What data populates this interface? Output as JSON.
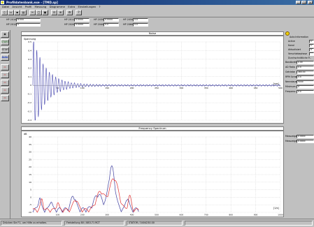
{
  "window": {
    "title": "Profildatenbank.exe - [TMD.sp]",
    "min": "_",
    "max": "□",
    "close": "×"
  },
  "menu": [
    "Datei",
    "Ansicht",
    "Profil",
    "Messung",
    "Diagramme",
    "Extra",
    "Einstellungen",
    "?"
  ],
  "toolbar": {
    "buttons": [
      "new",
      "open",
      "save",
      "print",
      "cut",
      "copy",
      "paste",
      "fit",
      "zoom",
      "settings",
      "help"
    ]
  },
  "params": {
    "row1": [
      {
        "label": "HP 2010",
        "value": "8.000"
      },
      {
        "label": "HP 2011",
        "value": "0.0000"
      },
      {
        "label": "HP 2030",
        "value": "0.0000"
      },
      {
        "label": "HP 2050",
        "value": "0.0"
      }
    ],
    "row2": [
      {
        "label": "HP 2012",
        "value": "0"
      },
      {
        "label": "HP 2020",
        "value": "0.0000"
      },
      {
        "label": "HP 2040",
        "value": "0.0"
      },
      {
        "label": "HP 2060",
        "value": "0.0"
      }
    ]
  },
  "left_tools": [
    "▣",
    "START",
    "STOP",
    "Auto",
    "▭",
    "▭",
    "▭",
    "▭",
    "▭"
  ],
  "noise_panel": {
    "title": "Noise",
    "ylabel": "Spannung",
    "xunit": "[ms]",
    "yticks": [
      "0.5",
      "0.4",
      "0.3",
      "0.2",
      "0.1",
      "0",
      "-0.1",
      "-0.2",
      "-0.3",
      "-0.4"
    ],
    "xticks": [
      "50",
      "100",
      "150",
      "200",
      "250",
      "300",
      "350",
      "400",
      "450",
      "500"
    ]
  },
  "spectrum_panel": {
    "title": "Frequency Spectrum",
    "ylabel": "dB",
    "xunit": "[1/s]",
    "yticks": [
      "40",
      "35",
      "30",
      "25",
      "20",
      "15",
      "10",
      "5",
      "0",
      "-5",
      "-10"
    ],
    "xticks": [
      "100",
      "200",
      "300",
      "400",
      "500",
      "600",
      "700",
      "800",
      "900",
      "1000"
    ]
  },
  "right_panel": {
    "heading": "Auto Information",
    "rows": [
      {
        "label": "Active",
        "value": "1"
      },
      {
        "label": "Kanal",
        "value": "1"
      },
      {
        "label": "Aktualisiert",
        "value": "0"
      },
      {
        "label": "Verschiebephase",
        "value": ""
      }
    ],
    "section2": "Durchschnittliche P...",
    "rows2": [
      {
        "label": "Bandbreite",
        "value": "0.00"
      },
      {
        "label": "AD Ratio",
        "value": "0.0"
      },
      {
        "label": "Getriebe",
        "value": "480.00"
      },
      {
        "label": "RPM Schwing",
        "value": "0.0"
      },
      {
        "label": "Nenndauer",
        "value": "5000"
      },
      {
        "label": "Minimum",
        "value": "0"
      },
      {
        "label": "Frequenz",
        "value": "0.0"
      }
    ],
    "rows3": [
      {
        "label": "Messzeiger 1",
        "value": "0.0000"
      },
      {
        "label": "Messzeiger 2",
        "value": "0.0000"
      }
    ]
  },
  "status": {
    "help": "Drücken Sie F1, um Hilfe zu erhalten.",
    "pos": "Freistellung 80 / 883.71 RCT",
    "coords": "STATOR / 3404230.00"
  },
  "colors": {
    "blue": "#4040a0",
    "red": "#e03030",
    "title": "#0a246a"
  }
}
